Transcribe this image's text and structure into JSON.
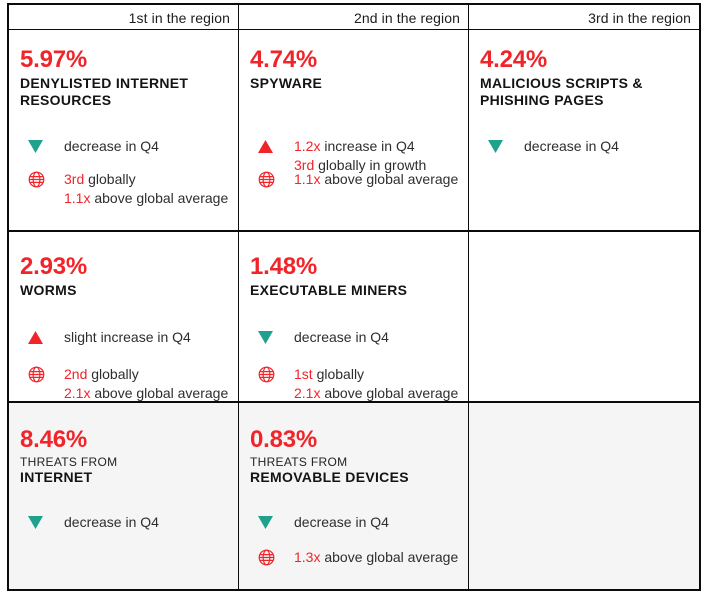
{
  "palette": {
    "red": "#f1242a",
    "green": "#1fa18d",
    "row3_bg": "#f5f5f5",
    "line": "#0b0b0b",
    "title_text": "#141414",
    "body_text": "#2e2e2e"
  },
  "headers": [
    "1st in the region",
    "2nd in the region",
    "3rd in the region"
  ],
  "cells": [
    {
      "pct": "5.97%",
      "title_lines": [
        {
          "text": "DENYLISTED INTERNET"
        },
        {
          "text": "RESOURCES"
        }
      ],
      "indicators": [
        {
          "icon": "triangle-down",
          "lines": [
            [
              {
                "text": "decrease in Q4"
              }
            ]
          ]
        },
        {
          "icon": "globe",
          "lines": [
            [
              {
                "text": "3rd",
                "red": true
              },
              {
                "text": " globally"
              }
            ],
            [
              {
                "text": "1.1x",
                "red": true
              },
              {
                "text": " above global average"
              }
            ]
          ]
        }
      ]
    },
    {
      "pct": "4.74%",
      "title_lines": [
        {
          "text": "SPYWARE"
        }
      ],
      "indicators": [
        {
          "icon": "triangle-up",
          "lines": [
            [
              {
                "text": "1.2x",
                "red": true
              },
              {
                "text": " increase in Q4"
              }
            ],
            [
              {
                "text": "3rd",
                "red": true
              },
              {
                "text": " globally in growth"
              }
            ]
          ]
        },
        {
          "icon": "globe",
          "lines": [
            [
              {
                "text": "1.1x",
                "red": true
              },
              {
                "text": " above global average"
              }
            ]
          ]
        }
      ]
    },
    {
      "pct": "4.24%",
      "title_lines": [
        {
          "text": "MALICIOUS SCRIPTS &"
        },
        {
          "text": "PHISHING PAGES"
        }
      ],
      "indicators": [
        {
          "icon": "triangle-down",
          "lines": [
            [
              {
                "text": "decrease in Q4"
              }
            ]
          ]
        }
      ]
    },
    {
      "pct": "2.93%",
      "title_lines": [
        {
          "text": "WORMS"
        }
      ],
      "indicators": [
        {
          "icon": "triangle-up",
          "lines": [
            [
              {
                "text": "slight increase in Q4"
              }
            ]
          ]
        },
        {
          "icon": "globe",
          "lines": [
            [
              {
                "text": "2nd",
                "red": true
              },
              {
                "text": " globally"
              }
            ],
            [
              {
                "text": "2.1x",
                "red": true
              },
              {
                "text": " above global average"
              }
            ]
          ]
        }
      ]
    },
    {
      "pct": "1.48%",
      "title_lines": [
        {
          "text": "EXECUTABLE MINERS"
        }
      ],
      "indicators": [
        {
          "icon": "triangle-down",
          "lines": [
            [
              {
                "text": "decrease in Q4"
              }
            ]
          ]
        },
        {
          "icon": "globe",
          "lines": [
            [
              {
                "text": "1st",
                "red": true
              },
              {
                "text": " globally"
              }
            ],
            [
              {
                "text": "2.1x",
                "red": true
              },
              {
                "text": " above global average"
              }
            ]
          ]
        }
      ]
    },
    {
      "empty": true
    },
    {
      "pct": "8.46%",
      "title_lines": [
        {
          "text": "THREATS FROM",
          "light": true
        },
        {
          "text": "INTERNET"
        }
      ],
      "indicators": [
        {
          "icon": "triangle-down",
          "lines": [
            [
              {
                "text": "decrease in Q4"
              }
            ]
          ]
        }
      ]
    },
    {
      "pct": "0.83%",
      "title_lines": [
        {
          "text": "THREATS FROM",
          "light": true
        },
        {
          "text": "REMOVABLE DEVICES"
        }
      ],
      "indicators": [
        {
          "icon": "triangle-down",
          "lines": [
            [
              {
                "text": "decrease in Q4"
              }
            ]
          ]
        },
        {
          "icon": "globe",
          "lines": [
            [
              {
                "text": "1.3x",
                "red": true
              },
              {
                "text": " above global average"
              }
            ]
          ]
        }
      ]
    },
    {
      "empty": true
    }
  ],
  "chart_data": {
    "type": "table",
    "columns": [
      "1st in the region",
      "2nd in the region",
      "3rd in the region"
    ],
    "rows": [
      {
        "region_rank": "1st in the region",
        "percent": "5.97%",
        "category": "Denylisted internet resources",
        "q4_trend": "decrease in Q4",
        "global_rank": "3rd globally",
        "vs_global_average": "1.1x above global average"
      },
      {
        "region_rank": "2nd in the region",
        "percent": "4.74%",
        "category": "Spyware",
        "q4_trend": "1.2x increase in Q4",
        "growth_rank": "3rd globally in growth",
        "vs_global_average": "1.1x above global average"
      },
      {
        "region_rank": "3rd in the region",
        "percent": "4.24%",
        "category": "Malicious scripts & phishing pages",
        "q4_trend": "decrease in Q4"
      },
      {
        "percent": "2.93%",
        "category": "Worms",
        "q4_trend": "slight increase in Q4",
        "global_rank": "2nd globally",
        "vs_global_average": "2.1x above global average"
      },
      {
        "percent": "1.48%",
        "category": "Executable miners",
        "q4_trend": "decrease in Q4",
        "global_rank": "1st globally",
        "vs_global_average": "2.1x above global average"
      },
      {
        "percent": "8.46%",
        "category": "Threats from internet",
        "q4_trend": "decrease in Q4"
      },
      {
        "percent": "0.83%",
        "category": "Threats from removable devices",
        "q4_trend": "decrease in Q4",
        "vs_global_average": "1.3x above global average"
      }
    ]
  }
}
